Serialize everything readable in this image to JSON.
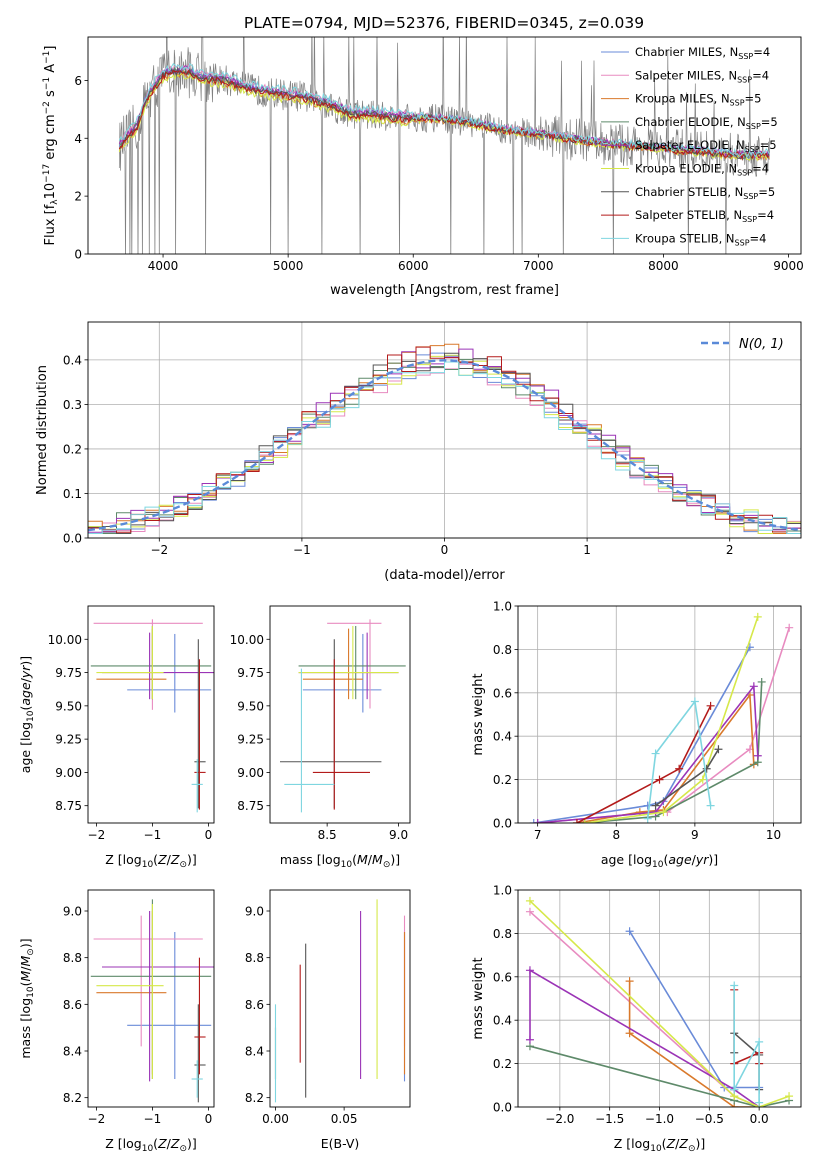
{
  "figure": {
    "title": "PLATE=0794, MJD=52376, FIBERID=0345, z=0.039"
  },
  "colors": {
    "Chabrier MILES": "#6a8bd8",
    "Salpeter MILES": "#e88bc0",
    "Kroupa MILES": "#d9792b",
    "Chabrier ELODIE": "#5e8a6a",
    "Salpeter ELODIE": "#9b34b6",
    "Kroupa ELODIE": "#d6e84a",
    "Chabrier STELIB": "#555555",
    "Salpeter STELIB": "#b31b1b",
    "Kroupa STELIB": "#7fd6e0",
    "data": "#808080",
    "normal": "#5a8ad8"
  },
  "chart_data": [
    {
      "id": "spectrum",
      "type": "line",
      "title": "PLATE=0794, MJD=52376, FIBERID=0345, z=0.039",
      "xlabel": "wavelength [Angstrom, rest frame]",
      "ylabel": "Flux [f_λ 10^-17 erg cm^-2 s^-1 A^-1]",
      "xlim": [
        3400,
        9100
      ],
      "ylim": [
        0,
        7.5
      ],
      "xticks": [
        4000,
        5000,
        6000,
        7000,
        8000,
        9000
      ],
      "yticks": [
        0,
        2,
        4,
        6
      ],
      "legend_position": "top-right",
      "legend": [
        {
          "series": "Chabrier MILES",
          "base": "Chabrier MILES, N",
          "sub": "SSP",
          "rest": "=4"
        },
        {
          "series": "Salpeter MILES",
          "base": "Salpeter MILES, N",
          "sub": "SSP",
          "rest": "=4"
        },
        {
          "series": "Kroupa MILES",
          "base": "Kroupa MILES, N",
          "sub": "SSP",
          "rest": "=5"
        },
        {
          "series": "Chabrier ELODIE",
          "base": "Chabrier ELODIE, N",
          "sub": "SSP",
          "rest": "=5"
        },
        {
          "series": "Salpeter ELODIE",
          "base": "Salpeter ELODIE, N",
          "sub": "SSP",
          "rest": "=5"
        },
        {
          "series": "Kroupa ELODIE",
          "base": "Kroupa ELODIE, N",
          "sub": "SSP",
          "rest": "=4"
        },
        {
          "series": "Chabrier STELIB",
          "base": "Chabrier STELIB, N",
          "sub": "SSP",
          "rest": "=5"
        },
        {
          "series": "Salpeter STELIB",
          "base": "Salpeter STELIB, N",
          "sub": "SSP",
          "rest": "=4"
        },
        {
          "series": "Kroupa STELIB",
          "base": "Kroupa STELIB, N",
          "sub": "SSP",
          "rest": "=4"
        }
      ],
      "model_continuum": {
        "x": [
          3650,
          3700,
          3750,
          3800,
          3850,
          3900,
          3950,
          4000,
          4100,
          4200,
          4300,
          4500,
          4700,
          4900,
          5100,
          5300,
          5500,
          5700,
          5900,
          6100,
          6300,
          6500,
          6700,
          6900,
          7100,
          7300,
          7500,
          7700,
          7900,
          8100,
          8300,
          8500,
          8700,
          8850
        ],
        "y": [
          3.7,
          4.0,
          4.2,
          4.5,
          5.2,
          5.6,
          5.9,
          6.2,
          6.3,
          6.3,
          6.1,
          6.0,
          5.7,
          5.55,
          5.45,
          5.2,
          4.85,
          4.8,
          4.7,
          4.7,
          4.65,
          4.5,
          4.3,
          4.2,
          4.1,
          3.95,
          3.85,
          3.75,
          3.7,
          3.6,
          3.55,
          3.45,
          3.4,
          3.45
        ]
      },
      "model_offsets": [
        0.05,
        0.12,
        -0.1,
        0.02,
        0.08,
        -0.15,
        0.0,
        -0.05,
        0.18
      ],
      "data_spikes_down": [
        3700,
        3735,
        3750,
        3800,
        3835,
        3890,
        3933,
        3968,
        4101,
        4340,
        4861,
        5000,
        5270,
        5577,
        5890,
        6300,
        6563,
        6800,
        6870,
        7200,
        7600,
        8200,
        8500
      ],
      "data_spikes_up": [
        3650,
        3700,
        3800,
        3900,
        4000,
        4100,
        4200,
        4300,
        4400,
        4500,
        4600,
        4700,
        4800,
        4900,
        5000,
        5100,
        5200,
        5300,
        5400,
        5500,
        5600,
        5700,
        5800,
        5900,
        6000,
        6100,
        6200,
        6300,
        6400,
        6500,
        6600,
        6700,
        6800,
        6900,
        7000,
        7300,
        7400,
        7700,
        7900,
        8300,
        8700
      ]
    },
    {
      "id": "residuals",
      "type": "line",
      "xlabel": "(data-model)/error",
      "ylabel": "Normed distribution",
      "xlim": [
        -2.5,
        2.5
      ],
      "ylim": [
        0,
        0.485
      ],
      "xticks": [
        -2,
        -1,
        0,
        1,
        2
      ],
      "yticks": [
        0.0,
        0.1,
        0.2,
        0.3,
        0.4
      ],
      "legend": [
        {
          "series": "normal",
          "label": "N(0, 1)"
        }
      ],
      "legend_position": "top-right",
      "grid": true,
      "bin_width": 0.1,
      "series_amplitudes": [
        0.99,
        0.97,
        1.03,
        1.0,
        1.02,
        0.98,
        1.01,
        1.03,
        0.96
      ]
    },
    {
      "id": "age_vs_Z",
      "type": "errorbar",
      "xlabel": "Z [log10(Z/Z⊙)]",
      "ylabel": "age [log10(age/yr)]",
      "xlim": [
        -2.15,
        0.1
      ],
      "ylim": [
        8.62,
        10.25
      ],
      "xticks": [
        -2,
        -1,
        0
      ],
      "yticks": [
        8.75,
        9.0,
        9.25,
        9.5,
        9.75,
        10.0
      ],
      "points": [
        {
          "series": "Chabrier MILES",
          "x": -0.6,
          "y": 9.62,
          "xlo": -1.45,
          "xhi": 0.05,
          "ylo": 9.45,
          "yhi": 10.04
        },
        {
          "series": "Salpeter MILES",
          "x": -1.0,
          "y": 10.12,
          "xlo": -2.05,
          "xhi": -0.1,
          "ylo": 9.47,
          "yhi": 10.15
        },
        {
          "series": "Kroupa MILES",
          "x": -1.0,
          "y": 9.7,
          "xlo": -2.0,
          "xhi": -0.75,
          "ylo": 9.55,
          "yhi": 10.08
        },
        {
          "series": "Chabrier ELODIE",
          "x": -1.0,
          "y": 9.8,
          "xlo": -2.1,
          "xhi": 0.05,
          "ylo": 9.55,
          "yhi": 10.1
        },
        {
          "series": "Salpeter ELODIE",
          "x": -1.05,
          "y": 9.75,
          "xlo": -1.9,
          "xhi": 0.1,
          "ylo": 9.55,
          "yhi": 10.05
        },
        {
          "series": "Kroupa ELODIE",
          "x": -1.0,
          "y": 9.75,
          "xlo": -2.0,
          "xhi": -0.8,
          "ylo": 9.55,
          "yhi": 10.1
        },
        {
          "series": "Chabrier STELIB",
          "x": -0.18,
          "y": 9.08,
          "xlo": -0.25,
          "xhi": -0.05,
          "ylo": 8.73,
          "yhi": 10.0
        },
        {
          "series": "Salpeter STELIB",
          "x": -0.16,
          "y": 9.0,
          "xlo": -0.25,
          "xhi": -0.05,
          "ylo": 8.72,
          "yhi": 9.85
        },
        {
          "series": "Kroupa STELIB",
          "x": -0.2,
          "y": 8.91,
          "xlo": -0.3,
          "xhi": -0.1,
          "ylo": 8.7,
          "yhi": 9.1
        }
      ]
    },
    {
      "id": "age_vs_mass",
      "type": "errorbar",
      "xlabel": "mass [log10(M/M⊙)]",
      "ylabel": "",
      "xlim": [
        8.1,
        9.08
      ],
      "ylim": [
        8.62,
        10.25
      ],
      "xticks": [
        8.5,
        9.0
      ],
      "yticks": [
        8.75,
        9.0,
        9.25,
        9.5,
        9.75,
        10.0
      ],
      "points": [
        {
          "series": "Chabrier MILES",
          "x": 8.75,
          "y": 9.62,
          "xlo": 8.33,
          "xhi": 8.88,
          "ylo": 9.45,
          "yhi": 10.04
        },
        {
          "series": "Salpeter MILES",
          "x": 8.8,
          "y": 10.12,
          "xlo": 8.5,
          "xhi": 8.88,
          "ylo": 9.48,
          "yhi": 10.15
        },
        {
          "series": "Kroupa MILES",
          "x": 8.65,
          "y": 9.7,
          "xlo": 8.33,
          "xhi": 8.75,
          "ylo": 9.55,
          "yhi": 10.08
        },
        {
          "series": "Chabrier ELODIE",
          "x": 8.7,
          "y": 9.8,
          "xlo": 8.3,
          "xhi": 9.05,
          "ylo": 9.55,
          "yhi": 10.1
        },
        {
          "series": "Salpeter ELODIE",
          "x": 8.78,
          "y": 9.75,
          "xlo": 8.3,
          "xhi": 9.0,
          "ylo": 9.55,
          "yhi": 10.05
        },
        {
          "series": "Kroupa ELODIE",
          "x": 8.68,
          "y": 9.75,
          "xlo": 8.3,
          "xhi": 9.0,
          "ylo": 9.55,
          "yhi": 10.1
        },
        {
          "series": "Chabrier STELIB",
          "x": 8.55,
          "y": 9.08,
          "xlo": 8.17,
          "xhi": 8.88,
          "ylo": 8.73,
          "yhi": 10.0
        },
        {
          "series": "Salpeter STELIB",
          "x": 8.55,
          "y": 9.0,
          "xlo": 8.4,
          "xhi": 8.8,
          "ylo": 8.72,
          "yhi": 9.85
        },
        {
          "series": "Kroupa STELIB",
          "x": 8.32,
          "y": 8.91,
          "xlo": 8.2,
          "xhi": 8.55,
          "ylo": 8.7,
          "yhi": 9.78
        }
      ]
    },
    {
      "id": "mass_weight_vs_age",
      "type": "line",
      "xlabel": "age [log10(age/yr)]",
      "ylabel": "mass weight",
      "xlim": [
        6.75,
        10.35
      ],
      "ylim": [
        0,
        1.0
      ],
      "xticks": [
        7,
        8,
        9,
        10
      ],
      "yticks": [
        0.0,
        0.2,
        0.4,
        0.6,
        0.8,
        1.0
      ],
      "grid": true,
      "series": [
        {
          "name": "Chabrier MILES",
          "x": [
            6.95,
            8.4,
            8.6,
            9.7
          ],
          "y": [
            0.0,
            0.08,
            0.1,
            0.81
          ]
        },
        {
          "name": "Salpeter MILES",
          "x": [
            7.0,
            8.5,
            8.65,
            9.7,
            10.2
          ],
          "y": [
            0.0,
            0.05,
            0.05,
            0.34,
            0.9
          ]
        },
        {
          "name": "Kroupa MILES",
          "x": [
            7.5,
            8.3,
            8.6,
            9.7,
            9.75
          ],
          "y": [
            0.0,
            0.05,
            0.06,
            0.59,
            0.27
          ]
        },
        {
          "name": "Chabrier ELODIE",
          "x": [
            7.6,
            8.5,
            9.8,
            9.85
          ],
          "y": [
            0.0,
            0.03,
            0.28,
            0.65
          ]
        },
        {
          "name": "Salpeter ELODIE",
          "x": [
            7.0,
            8.5,
            9.75,
            9.8
          ],
          "y": [
            0.0,
            0.05,
            0.63,
            0.31
          ]
        },
        {
          "name": "Kroupa ELODIE",
          "x": [
            7.6,
            8.6,
            9.1,
            9.8
          ],
          "y": [
            0.0,
            0.05,
            0.2,
            0.95
          ]
        },
        {
          "name": "Chabrier STELIB",
          "x": [
            8.5,
            9.15,
            9.3
          ],
          "y": [
            0.08,
            0.25,
            0.34
          ]
        },
        {
          "name": "Salpeter STELIB",
          "x": [
            7.5,
            8.55,
            8.8,
            9.2
          ],
          "y": [
            0.0,
            0.2,
            0.25,
            0.54
          ]
        },
        {
          "name": "Kroupa STELIB",
          "x": [
            8.4,
            8.5,
            9.0,
            9.2
          ],
          "y": [
            0.02,
            0.32,
            0.56,
            0.08
          ]
        }
      ]
    },
    {
      "id": "mass_vs_Z",
      "type": "errorbar",
      "xlabel": "Z [log10(Z/Z⊙)]",
      "ylabel": "mass [log10(M/M⊙)]",
      "xlim": [
        -2.15,
        0.1
      ],
      "ylim": [
        8.16,
        9.09
      ],
      "xticks": [
        -2,
        -1,
        0
      ],
      "yticks": [
        8.2,
        8.4,
        8.6,
        8.8,
        9.0
      ],
      "points": [
        {
          "series": "Chabrier MILES",
          "x": -0.6,
          "y": 8.51,
          "xlo": -1.45,
          "xhi": 0.05,
          "ylo": 8.28,
          "yhi": 8.91
        },
        {
          "series": "Salpeter MILES",
          "x": -1.2,
          "y": 8.88,
          "xlo": -2.05,
          "xhi": -0.1,
          "ylo": 8.42,
          "yhi": 8.98
        },
        {
          "series": "Kroupa MILES",
          "x": -1.0,
          "y": 8.65,
          "xlo": -2.0,
          "xhi": -0.75,
          "ylo": 8.3,
          "yhi": 9.0
        },
        {
          "series": "Chabrier ELODIE",
          "x": -1.0,
          "y": 8.72,
          "xlo": -2.1,
          "xhi": 0.05,
          "ylo": 8.28,
          "yhi": 9.05
        },
        {
          "series": "Salpeter ELODIE",
          "x": -1.05,
          "y": 8.76,
          "xlo": -1.9,
          "xhi": 0.1,
          "ylo": 8.27,
          "yhi": 9.0
        },
        {
          "series": "Kroupa ELODIE",
          "x": -1.0,
          "y": 8.68,
          "xlo": -2.0,
          "xhi": -0.8,
          "ylo": 8.28,
          "yhi": 9.03
        },
        {
          "series": "Chabrier STELIB",
          "x": -0.18,
          "y": 8.34,
          "xlo": -0.25,
          "xhi": -0.05,
          "ylo": 8.18,
          "yhi": 8.6
        },
        {
          "series": "Salpeter STELIB",
          "x": -0.16,
          "y": 8.46,
          "xlo": -0.25,
          "xhi": -0.05,
          "ylo": 8.3,
          "yhi": 8.8
        },
        {
          "series": "Kroupa STELIB",
          "x": -0.2,
          "y": 8.28,
          "xlo": -0.3,
          "xhi": -0.1,
          "ylo": 8.2,
          "yhi": 8.36
        }
      ]
    },
    {
      "id": "mass_vs_ebv",
      "type": "errorbar",
      "xlabel": "E(B-V)",
      "ylabel": "",
      "xlim": [
        -0.004,
        0.098
      ],
      "ylim": [
        8.16,
        9.09
      ],
      "xticks": [
        0.0,
        0.05
      ],
      "yticks": [
        8.2,
        8.4,
        8.6,
        8.8,
        9.0
      ],
      "points": [
        {
          "series": "Chabrier MILES",
          "x": 0.094,
          "y": 8.51,
          "ylo": 8.27,
          "yhi": 8.91
        },
        {
          "series": "Salpeter MILES",
          "x": 0.094,
          "y": 8.88,
          "ylo": 8.42,
          "yhi": 8.98
        },
        {
          "series": "Kroupa MILES",
          "x": 0.094,
          "y": 8.65,
          "ylo": 8.3,
          "yhi": 8.91
        },
        {
          "series": "Chabrier ELODIE",
          "x": 0.0,
          "y": 8.72,
          "ylo": 8.28,
          "yhi": 8.5
        },
        {
          "series": "Salpeter ELODIE",
          "x": 0.062,
          "y": 8.76,
          "ylo": 8.28,
          "yhi": 9.0
        },
        {
          "series": "Kroupa ELODIE",
          "x": 0.074,
          "y": 8.68,
          "ylo": 8.28,
          "yhi": 9.05
        },
        {
          "series": "Chabrier STELIB",
          "x": 0.022,
          "y": 8.34,
          "ylo": 8.2,
          "yhi": 8.86
        },
        {
          "series": "Salpeter STELIB",
          "x": 0.018,
          "y": 8.46,
          "ylo": 8.35,
          "yhi": 8.77
        },
        {
          "series": "Kroupa STELIB",
          "x": 0.0,
          "y": 8.28,
          "ylo": 8.18,
          "yhi": 8.6
        }
      ]
    },
    {
      "id": "mass_weight_vs_Z",
      "type": "line",
      "xlabel": "Z [log10(Z/Z⊙)]",
      "ylabel": "mass weight",
      "xlim": [
        -2.42,
        0.42
      ],
      "ylim": [
        0,
        1.0
      ],
      "xticks": [
        -2.0,
        -1.5,
        -1.0,
        -0.5,
        0.0
      ],
      "yticks": [
        0.0,
        0.2,
        0.4,
        0.6,
        0.8,
        1.0
      ],
      "grid": true,
      "series": [
        {
          "name": "Chabrier MILES",
          "x": [
            -1.3,
            -0.35,
            0.0
          ],
          "y": [
            0.81,
            0.09,
            0.09
          ]
        },
        {
          "name": "Salpeter MILES",
          "x": [
            -2.3,
            -0.25,
            0.0
          ],
          "y": [
            0.9,
            0.05,
            0.0
          ]
        },
        {
          "name": "Kroupa MILES",
          "x": [
            -1.3,
            -1.3,
            -0.25,
            0.0
          ],
          "y": [
            0.58,
            0.34,
            0.0,
            0.0
          ]
        },
        {
          "name": "Chabrier ELODIE",
          "x": [
            -2.3,
            -0.25,
            0.0,
            0.3
          ],
          "y": [
            0.28,
            0.03,
            0.0,
            0.03
          ]
        },
        {
          "name": "Salpeter ELODIE",
          "x": [
            -2.3,
            -2.3,
            -0.25,
            0.0
          ],
          "y": [
            0.31,
            0.63,
            0.08,
            0.0
          ]
        },
        {
          "name": "Kroupa ELODIE",
          "x": [
            -2.3,
            -0.25,
            0.0,
            0.3
          ],
          "y": [
            0.95,
            0.05,
            0.0,
            0.05
          ]
        },
        {
          "name": "Chabrier STELIB",
          "x": [
            -0.25,
            -0.25,
            0.0,
            0.0
          ],
          "y": [
            0.25,
            0.34,
            0.24,
            0.08
          ]
        },
        {
          "name": "Salpeter STELIB",
          "x": [
            -0.25,
            -0.25,
            0.0,
            0.0
          ],
          "y": [
            0.54,
            0.2,
            0.25,
            0.2
          ]
        },
        {
          "name": "Kroupa STELIB",
          "x": [
            -0.25,
            -0.25,
            0.0,
            0.0
          ],
          "y": [
            0.56,
            0.08,
            0.3,
            0.02
          ]
        }
      ]
    }
  ]
}
